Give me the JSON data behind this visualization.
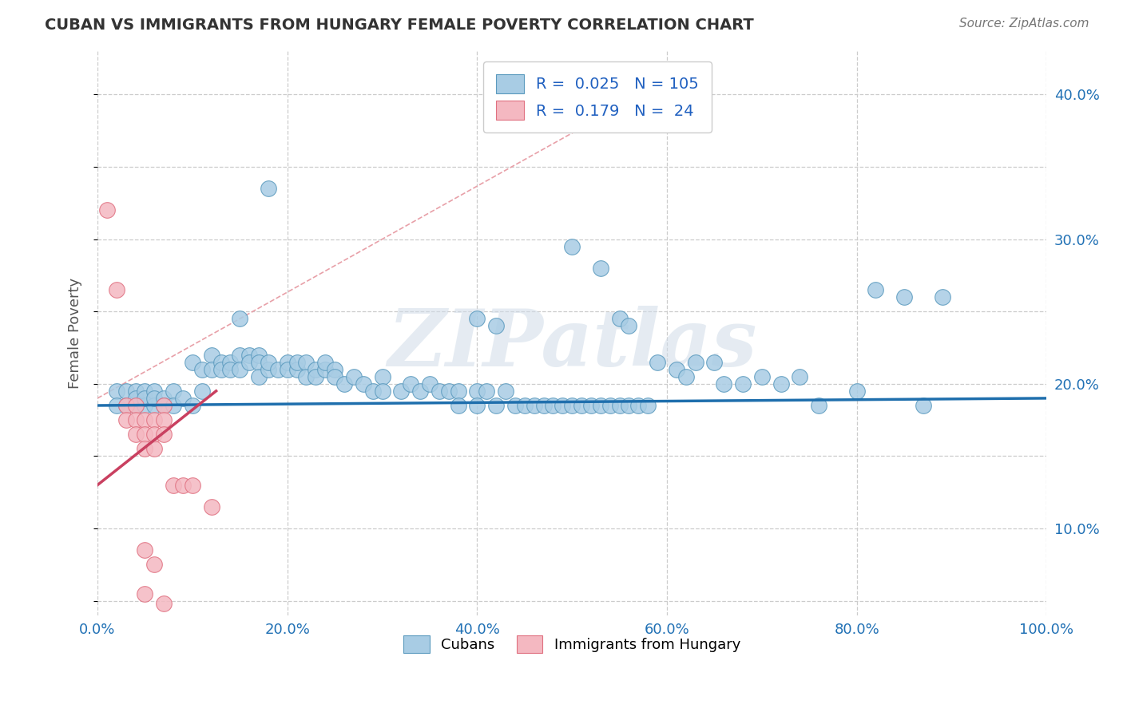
{
  "title": "CUBAN VS IMMIGRANTS FROM HUNGARY FEMALE POVERTY CORRELATION CHART",
  "source": "Source: ZipAtlas.com",
  "ylabel": "Female Poverty",
  "x_tick_labels": [
    "0.0%",
    "20.0%",
    "40.0%",
    "60.0%",
    "80.0%",
    "100.0%"
  ],
  "y_tick_labels_right": [
    "10.0%",
    "20.0%",
    "30.0%",
    "40.0%"
  ],
  "y_ticks_right": [
    0.1,
    0.2,
    0.3,
    0.4
  ],
  "xlim": [
    0,
    1.0
  ],
  "ylim": [
    0.04,
    0.43
  ],
  "legend_labels": [
    "Cubans",
    "Immigrants from Hungary"
  ],
  "R_cubans": 0.025,
  "N_cubans": 105,
  "R_hungary": 0.179,
  "N_hungary": 24,
  "blue_color": "#a8cce4",
  "pink_color": "#f4b8c1",
  "blue_edge": "#5b9abe",
  "pink_edge": "#e07080",
  "trendline_blue_color": "#1f6fad",
  "trendline_pink_color": "#c94060",
  "dashed_line_color": "#e8a0a8",
  "watermark": "ZIPatlas",
  "blue_dots": [
    [
      0.02,
      0.195
    ],
    [
      0.02,
      0.185
    ],
    [
      0.03,
      0.195
    ],
    [
      0.03,
      0.185
    ],
    [
      0.04,
      0.195
    ],
    [
      0.04,
      0.185
    ],
    [
      0.04,
      0.19
    ],
    [
      0.05,
      0.195
    ],
    [
      0.05,
      0.185
    ],
    [
      0.05,
      0.19
    ],
    [
      0.06,
      0.195
    ],
    [
      0.06,
      0.185
    ],
    [
      0.06,
      0.19
    ],
    [
      0.07,
      0.19
    ],
    [
      0.07,
      0.185
    ],
    [
      0.08,
      0.195
    ],
    [
      0.08,
      0.185
    ],
    [
      0.09,
      0.19
    ],
    [
      0.1,
      0.185
    ],
    [
      0.1,
      0.215
    ],
    [
      0.11,
      0.21
    ],
    [
      0.11,
      0.195
    ],
    [
      0.12,
      0.22
    ],
    [
      0.12,
      0.21
    ],
    [
      0.13,
      0.215
    ],
    [
      0.13,
      0.21
    ],
    [
      0.14,
      0.215
    ],
    [
      0.14,
      0.21
    ],
    [
      0.15,
      0.22
    ],
    [
      0.15,
      0.21
    ],
    [
      0.15,
      0.245
    ],
    [
      0.16,
      0.22
    ],
    [
      0.16,
      0.215
    ],
    [
      0.17,
      0.22
    ],
    [
      0.17,
      0.215
    ],
    [
      0.17,
      0.205
    ],
    [
      0.18,
      0.21
    ],
    [
      0.18,
      0.215
    ],
    [
      0.19,
      0.21
    ],
    [
      0.2,
      0.215
    ],
    [
      0.2,
      0.21
    ],
    [
      0.21,
      0.21
    ],
    [
      0.21,
      0.215
    ],
    [
      0.22,
      0.215
    ],
    [
      0.22,
      0.205
    ],
    [
      0.23,
      0.21
    ],
    [
      0.23,
      0.205
    ],
    [
      0.24,
      0.21
    ],
    [
      0.24,
      0.215
    ],
    [
      0.25,
      0.21
    ],
    [
      0.25,
      0.205
    ],
    [
      0.26,
      0.2
    ],
    [
      0.27,
      0.205
    ],
    [
      0.28,
      0.2
    ],
    [
      0.29,
      0.195
    ],
    [
      0.3,
      0.205
    ],
    [
      0.3,
      0.195
    ],
    [
      0.32,
      0.195
    ],
    [
      0.33,
      0.2
    ],
    [
      0.34,
      0.195
    ],
    [
      0.35,
      0.2
    ],
    [
      0.36,
      0.195
    ],
    [
      0.37,
      0.195
    ],
    [
      0.38,
      0.195
    ],
    [
      0.38,
      0.185
    ],
    [
      0.4,
      0.195
    ],
    [
      0.4,
      0.185
    ],
    [
      0.41,
      0.195
    ],
    [
      0.42,
      0.185
    ],
    [
      0.43,
      0.195
    ],
    [
      0.44,
      0.185
    ],
    [
      0.45,
      0.185
    ],
    [
      0.46,
      0.185
    ],
    [
      0.47,
      0.185
    ],
    [
      0.48,
      0.185
    ],
    [
      0.49,
      0.185
    ],
    [
      0.5,
      0.185
    ],
    [
      0.51,
      0.185
    ],
    [
      0.52,
      0.185
    ],
    [
      0.53,
      0.185
    ],
    [
      0.54,
      0.185
    ],
    [
      0.55,
      0.185
    ],
    [
      0.56,
      0.185
    ],
    [
      0.57,
      0.185
    ],
    [
      0.58,
      0.185
    ],
    [
      0.4,
      0.245
    ],
    [
      0.42,
      0.24
    ],
    [
      0.5,
      0.295
    ],
    [
      0.53,
      0.28
    ],
    [
      0.55,
      0.245
    ],
    [
      0.56,
      0.24
    ],
    [
      0.59,
      0.215
    ],
    [
      0.61,
      0.21
    ],
    [
      0.62,
      0.205
    ],
    [
      0.63,
      0.215
    ],
    [
      0.65,
      0.215
    ],
    [
      0.66,
      0.2
    ],
    [
      0.68,
      0.2
    ],
    [
      0.7,
      0.205
    ],
    [
      0.72,
      0.2
    ],
    [
      0.74,
      0.205
    ],
    [
      0.76,
      0.185
    ],
    [
      0.8,
      0.195
    ],
    [
      0.82,
      0.265
    ],
    [
      0.85,
      0.26
    ],
    [
      0.87,
      0.185
    ],
    [
      0.89,
      0.26
    ],
    [
      0.18,
      0.335
    ]
  ],
  "pink_dots": [
    [
      0.01,
      0.32
    ],
    [
      0.02,
      0.265
    ],
    [
      0.03,
      0.185
    ],
    [
      0.03,
      0.175
    ],
    [
      0.04,
      0.185
    ],
    [
      0.04,
      0.175
    ],
    [
      0.04,
      0.165
    ],
    [
      0.05,
      0.175
    ],
    [
      0.05,
      0.165
    ],
    [
      0.05,
      0.155
    ],
    [
      0.05,
      0.085
    ],
    [
      0.05,
      0.055
    ],
    [
      0.06,
      0.175
    ],
    [
      0.06,
      0.165
    ],
    [
      0.06,
      0.155
    ],
    [
      0.06,
      0.075
    ],
    [
      0.07,
      0.185
    ],
    [
      0.07,
      0.175
    ],
    [
      0.07,
      0.165
    ],
    [
      0.07,
      0.048
    ],
    [
      0.08,
      0.13
    ],
    [
      0.09,
      0.13
    ],
    [
      0.1,
      0.13
    ],
    [
      0.12,
      0.115
    ]
  ],
  "dashed_line_x": [
    0.0,
    0.6
  ],
  "dashed_line_y": [
    0.19,
    0.41
  ],
  "blue_trendline_x": [
    0.0,
    1.0
  ],
  "blue_trendline_y": [
    0.185,
    0.19
  ],
  "pink_trendline_x": [
    0.0,
    0.125
  ],
  "pink_trendline_y": [
    0.13,
    0.195
  ]
}
